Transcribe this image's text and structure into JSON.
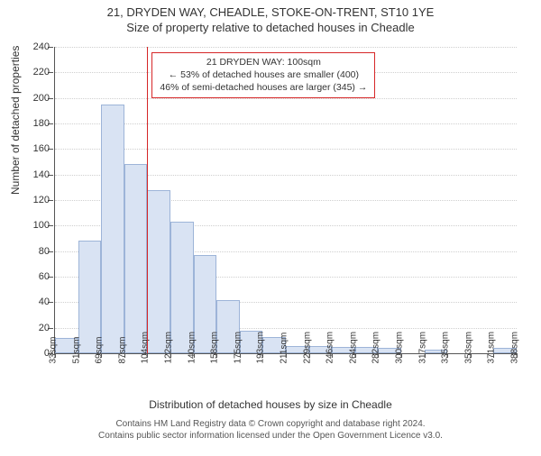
{
  "title_main": "21, DRYDEN WAY, CHEADLE, STOKE-ON-TRENT, ST10 1YE",
  "title_sub": "Size of property relative to detached houses in Cheadle",
  "y_axis_title": "Number of detached properties",
  "x_axis_title": "Distribution of detached houses by size in Cheadle",
  "footer_line1": "Contains HM Land Registry data © Crown copyright and database right 2024.",
  "footer_line2": "Contains public sector information licensed under the Open Government Licence v3.0.",
  "info_box": {
    "line1": "21 DRYDEN WAY: 100sqm",
    "line2": "← 53% of detached houses are smaller (400)",
    "line3": "46% of semi-detached houses are larger (345) →"
  },
  "chart": {
    "type": "histogram",
    "y_max": 240,
    "y_tick_step": 20,
    "bar_fill": "#d9e3f3",
    "bar_stroke": "#9db4d8",
    "grid_color": "#cfcfcf",
    "axis_color": "#555555",
    "marker_color": "#d62728",
    "background": "#ffffff",
    "title_fontsize": 13,
    "label_fontsize": 12,
    "tick_fontsize": 11,
    "xtick_fontsize": 10,
    "marker_bin_index": 4,
    "x_ticks": [
      "33sqm",
      "51sqm",
      "69sqm",
      "87sqm",
      "104sqm",
      "122sqm",
      "140sqm",
      "158sqm",
      "175sqm",
      "193sqm",
      "211sqm",
      "229sqm",
      "246sqm",
      "264sqm",
      "282sqm",
      "300sqm",
      "317sqm",
      "335sqm",
      "353sqm",
      "371sqm",
      "388sqm"
    ],
    "values": [
      12,
      88,
      195,
      148,
      128,
      103,
      77,
      42,
      18,
      13,
      6,
      6,
      5,
      5,
      4,
      0,
      3,
      0,
      0,
      4
    ]
  }
}
